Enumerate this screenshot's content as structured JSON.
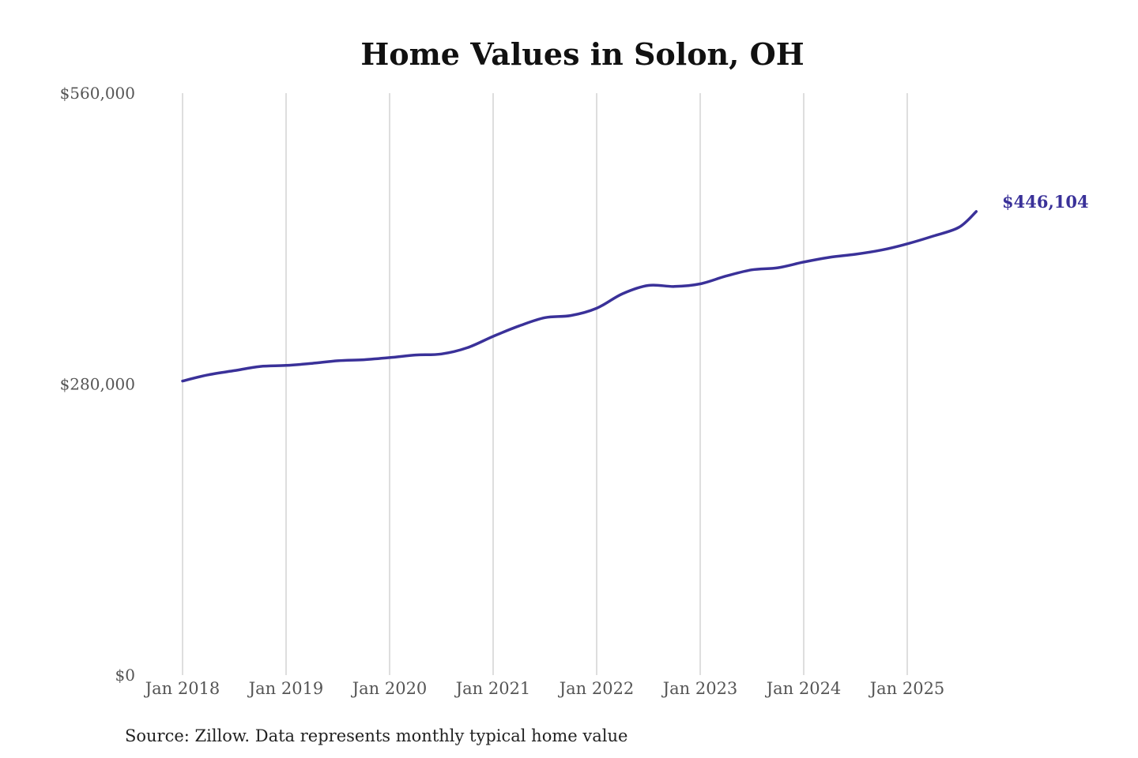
{
  "chart_data": {
    "type": "line",
    "title": "Home Values in Solon, OH",
    "xlabel": "",
    "ylabel": "",
    "ylim": [
      0,
      560000
    ],
    "xlim": [
      "2018-01",
      "2025-09"
    ],
    "yticks": [
      {
        "value": 0,
        "label": "$0"
      },
      {
        "value": 280000,
        "label": "$280,000"
      },
      {
        "value": 560000,
        "label": "$560,000"
      }
    ],
    "xticks": [
      {
        "value": "2018-01",
        "label": "Jan 2018"
      },
      {
        "value": "2019-01",
        "label": "Jan 2019"
      },
      {
        "value": "2020-01",
        "label": "Jan 2020"
      },
      {
        "value": "2021-01",
        "label": "Jan 2021"
      },
      {
        "value": "2022-01",
        "label": "Jan 2022"
      },
      {
        "value": "2023-01",
        "label": "Jan 2023"
      },
      {
        "value": "2024-01",
        "label": "Jan 2024"
      },
      {
        "value": "2025-01",
        "label": "Jan 2025"
      }
    ],
    "grid": "vertical",
    "legend": "none",
    "end_label": "$446,104",
    "series": [
      {
        "color": "#3a3199",
        "x": [
          "2018-01",
          "2018-04",
          "2018-07",
          "2018-10",
          "2019-01",
          "2019-04",
          "2019-07",
          "2019-10",
          "2020-01",
          "2020-04",
          "2020-07",
          "2020-10",
          "2021-01",
          "2021-04",
          "2021-07",
          "2021-10",
          "2022-01",
          "2022-04",
          "2022-07",
          "2022-10",
          "2023-01",
          "2023-04",
          "2023-07",
          "2023-10",
          "2024-01",
          "2024-04",
          "2024-07",
          "2024-10",
          "2025-01",
          "2025-04",
          "2025-07",
          "2025-09"
        ],
        "values": [
          283000,
          289000,
          293000,
          297000,
          298000,
          300000,
          302500,
          303500,
          305500,
          308000,
          309000,
          315000,
          326000,
          336000,
          344000,
          346000,
          353000,
          367000,
          375000,
          374000,
          376500,
          384000,
          390000,
          392000,
          397500,
          402000,
          405000,
          409000,
          415000,
          422500,
          431000,
          446104
        ]
      }
    ]
  },
  "source_note": "Source: Zillow. Data represents monthly typical home value",
  "colors": {
    "line": "#3a3199",
    "grid": "#c8c8c8",
    "title": "#111111",
    "ticks": "#555555"
  }
}
